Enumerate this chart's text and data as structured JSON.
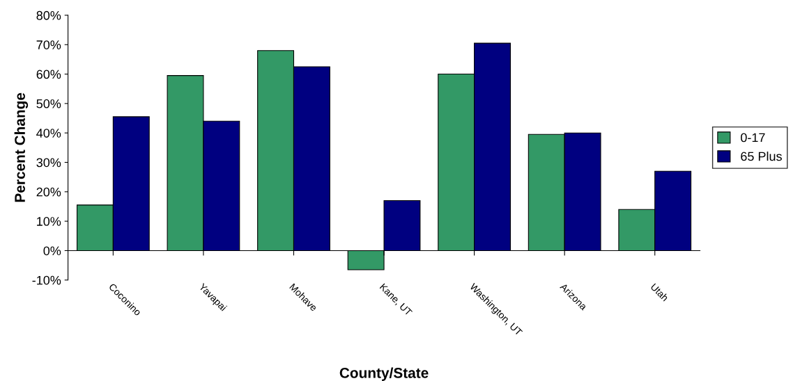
{
  "chart_data": {
    "type": "bar",
    "xlabel": "County/State",
    "ylabel": "Percent Change",
    "categories": [
      "Coconino",
      "Yavapai",
      "Mohave",
      "Kane, UT",
      "Washington, UT",
      "Arizona",
      "Utah"
    ],
    "series": [
      {
        "name": "0-17",
        "color": "#339966",
        "values": [
          15.5,
          59.5,
          68,
          -6.5,
          60,
          39.5,
          14
        ]
      },
      {
        "name": "65 Plus",
        "color": "#000080",
        "values": [
          45.5,
          44,
          62.5,
          17,
          70.5,
          40,
          27
        ]
      }
    ],
    "ylim": [
      -10,
      80
    ],
    "yticks": [
      {
        "value": -10,
        "label": "-10%"
      },
      {
        "value": 0,
        "label": "0%"
      },
      {
        "value": 10,
        "label": "10%"
      },
      {
        "value": 20,
        "label": "20%"
      },
      {
        "value": 30,
        "label": "30%"
      },
      {
        "value": 40,
        "label": "40%"
      },
      {
        "value": 50,
        "label": "50%"
      },
      {
        "value": 60,
        "label": "60%"
      },
      {
        "value": 70,
        "label": "70%"
      },
      {
        "value": 80,
        "label": "80%"
      }
    ],
    "legend": "right"
  }
}
